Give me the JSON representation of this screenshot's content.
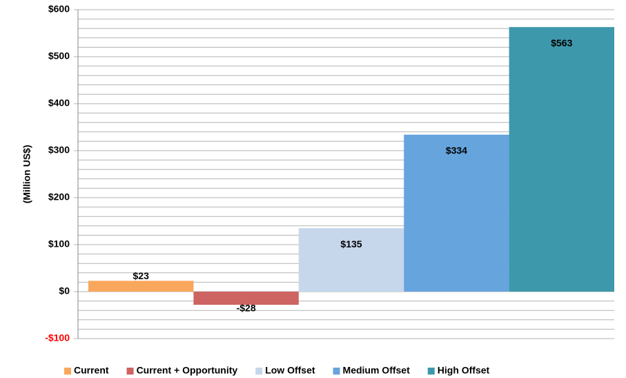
{
  "chart_data": {
    "type": "bar",
    "ylabel": "(Million US$)",
    "ylim": [
      -100,
      600
    ],
    "yticks": [
      {
        "value": -100,
        "label": "-$100"
      },
      {
        "value": 0,
        "label": "$0"
      },
      {
        "value": 100,
        "label": "$100"
      },
      {
        "value": 200,
        "label": "$200"
      },
      {
        "value": 300,
        "label": "$300"
      },
      {
        "value": 400,
        "label": "$400"
      },
      {
        "value": 500,
        "label": "$500"
      },
      {
        "value": 600,
        "label": "$600"
      }
    ],
    "minor_yticks": [
      -80,
      -60,
      -40,
      -20,
      20,
      40,
      60,
      80,
      120,
      140,
      160,
      180,
      220,
      240,
      260,
      280,
      320,
      340,
      360,
      380,
      420,
      440,
      460,
      480,
      520,
      540,
      560,
      580
    ],
    "negative_tick_color": "#ff0000",
    "grid": true,
    "legend": "bottom",
    "series": [
      {
        "name": "Current",
        "color": "#f9a75c",
        "values": [
          23
        ],
        "value_labels": [
          "$23"
        ]
      },
      {
        "name": "Current + Opportunity",
        "color": "#cd6461",
        "values": [
          -28
        ],
        "value_labels": [
          "-$28"
        ]
      },
      {
        "name": "Low Offset",
        "color": "#c6d7ec",
        "values": [
          135
        ],
        "value_labels": [
          "$135"
        ]
      },
      {
        "name": "Medium Offset",
        "color": "#66a4de",
        "values": [
          334
        ],
        "value_labels": [
          "$334"
        ]
      },
      {
        "name": "High Offset",
        "color": "#3e98ab",
        "values": [
          563
        ],
        "value_labels": [
          "$563"
        ]
      }
    ]
  }
}
